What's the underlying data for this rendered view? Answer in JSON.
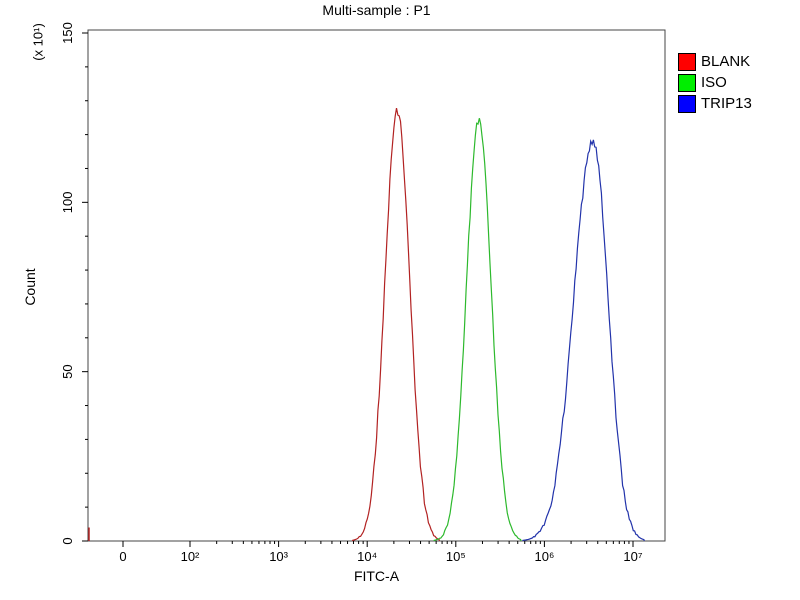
{
  "chart_data": {
    "type": "line",
    "subtype": "flow-cytometry-histogram-overlay",
    "title": "Multi-sample : P1",
    "xlabel": "FITC-A",
    "ylabel": "Count",
    "y_axis_multiplier": "(x 10¹)",
    "x_scale": "log",
    "x_ticks": [
      {
        "label": "0",
        "log10": null
      },
      {
        "label": "10²",
        "log10": 2
      },
      {
        "label": "10³",
        "log10": 3
      },
      {
        "label": "10⁴",
        "log10": 4
      },
      {
        "label": "10⁵",
        "log10": 5
      },
      {
        "label": "10⁶",
        "log10": 6
      },
      {
        "label": "10⁷",
        "log10": 7
      }
    ],
    "y_ticks": [
      0,
      50,
      100,
      150
    ],
    "ylim": [
      0,
      155
    ],
    "grid": false,
    "legend_position": "outside-top-right",
    "series": [
      {
        "name": "BLANK",
        "legend_color": "#ff0000",
        "line_color": "#b22222",
        "peak_x": 22000,
        "peak_x_log10": 4.34,
        "peak_count": 127,
        "sigma_log10": 0.14,
        "zero_spike_count": 4
      },
      {
        "name": "ISO",
        "legend_color": "#00ee00",
        "line_color": "#2db92d",
        "peak_x": 180000,
        "peak_x_log10": 5.26,
        "peak_count": 124,
        "sigma_log10": 0.14
      },
      {
        "name": "TRIP13",
        "legend_color": "#0000ff",
        "line_color": "#2233aa",
        "peak_x": 3500000,
        "peak_x_log10": 6.55,
        "peak_count": 118,
        "sigma_log10": 0.17,
        "sigma_log10_left": 0.22
      }
    ]
  }
}
